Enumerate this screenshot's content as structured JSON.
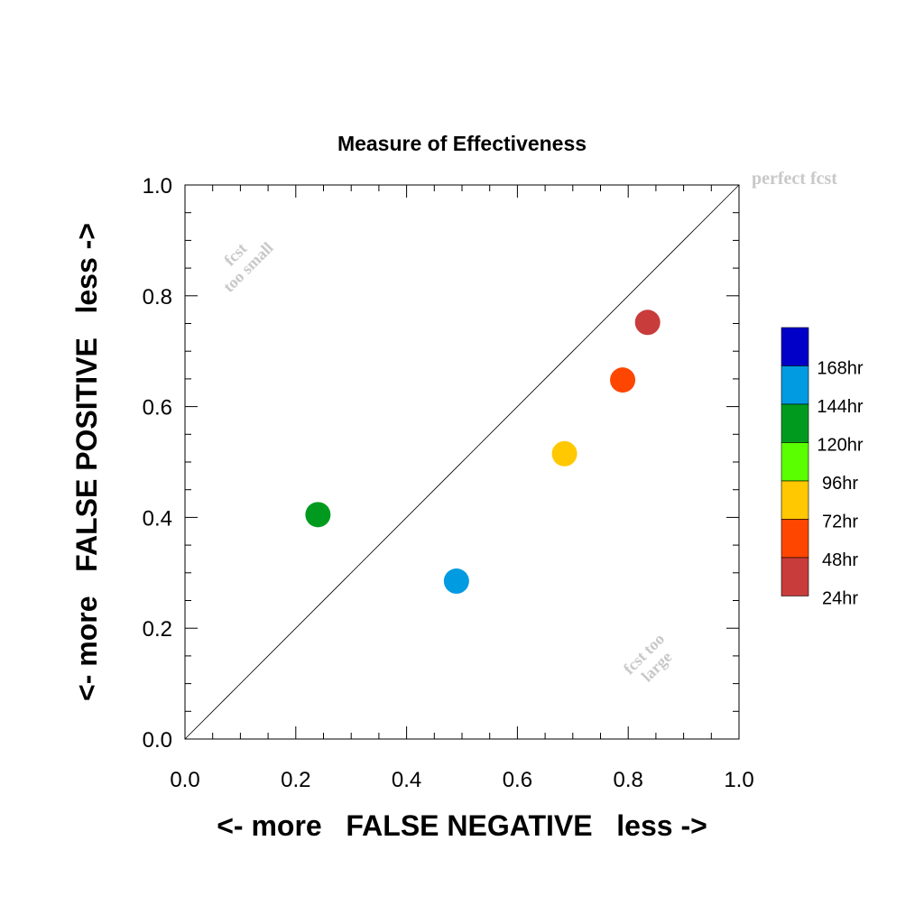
{
  "chart_data": {
    "type": "scatter",
    "title": "Measure of Effectiveness",
    "xlabel": "<- more   FALSE NEGATIVE   less ->",
    "ylabel": "<- more   FALSE POSITIVE   less ->",
    "xlim": [
      0,
      1
    ],
    "ylim": [
      0,
      1
    ],
    "x_ticks": [
      "0.0",
      "0.2",
      "0.4",
      "0.6",
      "0.8",
      "1.0"
    ],
    "y_ticks": [
      "0.0",
      "0.2",
      "0.4",
      "0.6",
      "0.8",
      "1.0"
    ],
    "grid": false,
    "reference_line": {
      "from": [
        0,
        0
      ],
      "to": [
        1,
        1
      ]
    },
    "annotations": {
      "perfect": "perfect fcst",
      "too_small_1": "fcst",
      "too_small_2": "too small",
      "too_large_1": "fcst too",
      "too_large_2": "large"
    },
    "legend": {
      "position": "right",
      "entries": [
        {
          "label": "168hr",
          "color": "#0000c8"
        },
        {
          "label": "144hr",
          "color": "#009be1"
        },
        {
          "label": "120hr",
          "color": "#009b1e"
        },
        {
          "label": "96hr",
          "color": "#5aff00"
        },
        {
          "label": "72hr",
          "color": "#ffc800"
        },
        {
          "label": "48hr",
          "color": "#ff4600"
        },
        {
          "label": "24hr",
          "color": "#c83c3c"
        }
      ]
    },
    "points": [
      {
        "series": "144hr",
        "x": 0.49,
        "y": 0.285,
        "color": "#009be1"
      },
      {
        "series": "120hr",
        "x": 0.24,
        "y": 0.405,
        "color": "#009b1e"
      },
      {
        "series": "72hr",
        "x": 0.685,
        "y": 0.515,
        "color": "#ffc800"
      },
      {
        "series": "48hr",
        "x": 0.79,
        "y": 0.648,
        "color": "#ff4600"
      },
      {
        "series": "24hr",
        "x": 0.835,
        "y": 0.752,
        "color": "#c83c3c"
      }
    ]
  }
}
